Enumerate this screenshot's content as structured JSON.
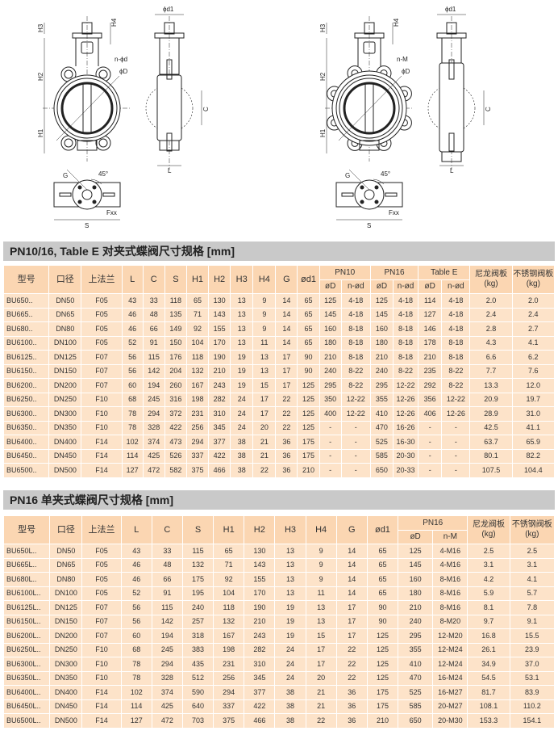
{
  "drawings": {
    "wafer": {
      "h1": "H1",
      "h2": "H2",
      "h3": "H3",
      "h4": "H4",
      "bolt": "n-ϕd",
      "od": "ϕD",
      "d1": "ϕd1",
      "c": "C",
      "l": "L",
      "s": "S",
      "g": "G",
      "angle": "45°",
      "f": "Fxx"
    },
    "lug": {
      "h1": "H1",
      "h2": "H2",
      "h3": "H3",
      "h4": "H4",
      "bolt": "n-M",
      "od": "ϕD",
      "d1": "ϕd1",
      "c": "C",
      "l": "L",
      "s": "S",
      "g": "G",
      "angle": "45°",
      "f": "Fxx"
    }
  },
  "table1": {
    "title": "PN10/16, Table E 对夹式蝶阀尺寸规格 [mm]",
    "headers": [
      "型号",
      "口径",
      "上法兰",
      "L",
      "C",
      "S",
      "H1",
      "H2",
      "H3",
      "H4",
      "G",
      "ød1"
    ],
    "groups": [
      "PN10",
      "PN16",
      "Table E"
    ],
    "sub": [
      "øD",
      "n-ød",
      "øD",
      "n-ød",
      "øD",
      "n-ød"
    ],
    "weights": [
      "尼龙阀板 (kg)",
      "不锈钢阀板 (kg)"
    ],
    "rows": [
      [
        "BU650..",
        "DN50",
        "F05",
        "43",
        "33",
        "118",
        "65",
        "130",
        "13",
        "9",
        "14",
        "65",
        "125",
        "4-18",
        "125",
        "4-18",
        "114",
        "4-18",
        "2.0",
        "2.0"
      ],
      [
        "BU665..",
        "DN65",
        "F05",
        "46",
        "48",
        "135",
        "71",
        "143",
        "13",
        "9",
        "14",
        "65",
        "145",
        "4-18",
        "145",
        "4-18",
        "127",
        "4-18",
        "2.4",
        "2.4"
      ],
      [
        "BU680..",
        "DN80",
        "F05",
        "46",
        "66",
        "149",
        "92",
        "155",
        "13",
        "9",
        "14",
        "65",
        "160",
        "8-18",
        "160",
        "8-18",
        "146",
        "4-18",
        "2.8",
        "2.7"
      ],
      [
        "BU6100..",
        "DN100",
        "F05",
        "52",
        "91",
        "150",
        "104",
        "170",
        "13",
        "11",
        "14",
        "65",
        "180",
        "8-18",
        "180",
        "8-18",
        "178",
        "8-18",
        "4.3",
        "4.1"
      ],
      [
        "BU6125..",
        "DN125",
        "F07",
        "56",
        "115",
        "176",
        "118",
        "190",
        "19",
        "13",
        "17",
        "90",
        "210",
        "8-18",
        "210",
        "8-18",
        "210",
        "8-18",
        "6.6",
        "6.2"
      ],
      [
        "BU6150..",
        "DN150",
        "F07",
        "56",
        "142",
        "204",
        "132",
        "210",
        "19",
        "13",
        "17",
        "90",
        "240",
        "8-22",
        "240",
        "8-22",
        "235",
        "8-22",
        "7.7",
        "7.6"
      ],
      [
        "BU6200..",
        "DN200",
        "F07",
        "60",
        "194",
        "260",
        "167",
        "243",
        "19",
        "15",
        "17",
        "125",
        "295",
        "8-22",
        "295",
        "12-22",
        "292",
        "8-22",
        "13.3",
        "12.0"
      ],
      [
        "BU6250..",
        "DN250",
        "F10",
        "68",
        "245",
        "316",
        "198",
        "282",
        "24",
        "17",
        "22",
        "125",
        "350",
        "12-22",
        "355",
        "12-26",
        "356",
        "12-22",
        "20.9",
        "19.7"
      ],
      [
        "BU6300..",
        "DN300",
        "F10",
        "78",
        "294",
        "372",
        "231",
        "310",
        "24",
        "17",
        "22",
        "125",
        "400",
        "12-22",
        "410",
        "12-26",
        "406",
        "12-26",
        "28.9",
        "31.0"
      ],
      [
        "BU6350..",
        "DN350",
        "F10",
        "78",
        "328",
        "422",
        "256",
        "345",
        "24",
        "20",
        "22",
        "125",
        "-",
        "-",
        "470",
        "16-26",
        "-",
        "-",
        "42.5",
        "41.1"
      ],
      [
        "BU6400..",
        "DN400",
        "F14",
        "102",
        "374",
        "473",
        "294",
        "377",
        "38",
        "21",
        "36",
        "175",
        "-",
        "-",
        "525",
        "16-30",
        "-",
        "-",
        "63.7",
        "65.9"
      ],
      [
        "BU6450..",
        "DN450",
        "F14",
        "114",
        "425",
        "526",
        "337",
        "422",
        "38",
        "21",
        "36",
        "175",
        "-",
        "-",
        "585",
        "20-30",
        "-",
        "-",
        "80.1",
        "82.2"
      ],
      [
        "BU6500..",
        "DN500",
        "F14",
        "127",
        "472",
        "582",
        "375",
        "466",
        "38",
        "22",
        "36",
        "210",
        "-",
        "-",
        "650",
        "20-33",
        "-",
        "-",
        "107.5",
        "104.4"
      ]
    ]
  },
  "table2": {
    "title": "PN16 单夹式蝶阀尺寸规格 [mm]",
    "headers": [
      "型号",
      "口径",
      "上法兰",
      "L",
      "C",
      "S",
      "H1",
      "H2",
      "H3",
      "H4",
      "G",
      "ød1"
    ],
    "groups": [
      "PN16"
    ],
    "sub": [
      "øD",
      "n-M"
    ],
    "weights": [
      "尼龙阀板 (kg)",
      "不锈钢阀板 (kg)"
    ],
    "rows": [
      [
        "BU650L..",
        "DN50",
        "F05",
        "43",
        "33",
        "115",
        "65",
        "130",
        "13",
        "9",
        "14",
        "65",
        "125",
        "4-M16",
        "2.5",
        "2.5"
      ],
      [
        "BU665L..",
        "DN65",
        "F05",
        "46",
        "48",
        "132",
        "71",
        "143",
        "13",
        "9",
        "14",
        "65",
        "145",
        "4-M16",
        "3.1",
        "3.1"
      ],
      [
        "BU680L..",
        "DN80",
        "F05",
        "46",
        "66",
        "175",
        "92",
        "155",
        "13",
        "9",
        "14",
        "65",
        "160",
        "8-M16",
        "4.2",
        "4.1"
      ],
      [
        "BU6100L..",
        "DN100",
        "F05",
        "52",
        "91",
        "195",
        "104",
        "170",
        "13",
        "11",
        "14",
        "65",
        "180",
        "8-M16",
        "5.9",
        "5.7"
      ],
      [
        "BU6125L..",
        "DN125",
        "F07",
        "56",
        "115",
        "240",
        "118",
        "190",
        "19",
        "13",
        "17",
        "90",
        "210",
        "8-M16",
        "8.1",
        "7.8"
      ],
      [
        "BU6150L..",
        "DN150",
        "F07",
        "56",
        "142",
        "257",
        "132",
        "210",
        "19",
        "13",
        "17",
        "90",
        "240",
        "8-M20",
        "9.7",
        "9.1"
      ],
      [
        "BU6200L..",
        "DN200",
        "F07",
        "60",
        "194",
        "318",
        "167",
        "243",
        "19",
        "15",
        "17",
        "125",
        "295",
        "12-M20",
        "16.8",
        "15.5"
      ],
      [
        "BU6250L..",
        "DN250",
        "F10",
        "68",
        "245",
        "383",
        "198",
        "282",
        "24",
        "17",
        "22",
        "125",
        "355",
        "12-M24",
        "26.1",
        "23.9"
      ],
      [
        "BU6300L..",
        "DN300",
        "F10",
        "78",
        "294",
        "435",
        "231",
        "310",
        "24",
        "17",
        "22",
        "125",
        "410",
        "12-M24",
        "34.9",
        "37.0"
      ],
      [
        "BU6350L..",
        "DN350",
        "F10",
        "78",
        "328",
        "512",
        "256",
        "345",
        "24",
        "20",
        "22",
        "125",
        "470",
        "16-M24",
        "54.5",
        "53.1"
      ],
      [
        "BU6400L..",
        "DN400",
        "F14",
        "102",
        "374",
        "590",
        "294",
        "377",
        "38",
        "21",
        "36",
        "175",
        "525",
        "16-M27",
        "81.7",
        "83.9"
      ],
      [
        "BU6450L..",
        "DN450",
        "F14",
        "114",
        "425",
        "640",
        "337",
        "422",
        "38",
        "21",
        "36",
        "175",
        "585",
        "20-M27",
        "108.1",
        "110.2"
      ],
      [
        "BU6500L..",
        "DN500",
        "F14",
        "127",
        "472",
        "703",
        "375",
        "466",
        "38",
        "22",
        "36",
        "210",
        "650",
        "20-M30",
        "153.3",
        "154.1"
      ]
    ]
  }
}
